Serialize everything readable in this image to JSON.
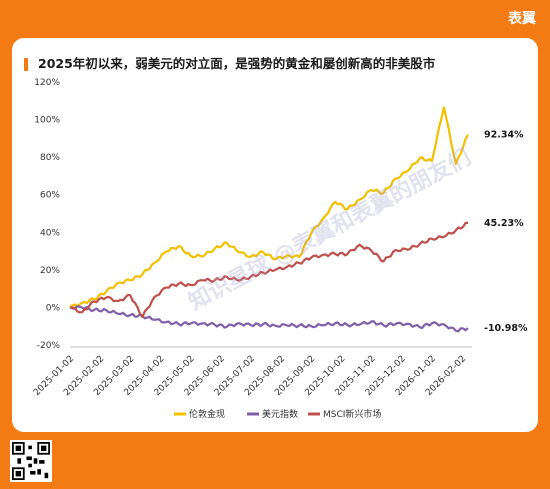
{
  "brand": "表翼",
  "watermark": "知识星球 @表翼和表翼的朋友们",
  "chart_data": {
    "type": "line",
    "title": "2025年初以来，弱美元的对立面，是强势的黄金和屡创新高的非美股市",
    "xlabel": "",
    "ylabel": "",
    "x_ticks": [
      "2025-01-02",
      "2025-02-02",
      "2025-03-02",
      "2025-04-02",
      "2025-05-02",
      "2025-06-02",
      "2025-07-02",
      "2025-08-02",
      "2025-09-02",
      "2025-10-02",
      "2025-11-02",
      "2025-12-02",
      "2026-01-02",
      "2026-02-02"
    ],
    "y_ticks": [
      "-20%",
      "0%",
      "20%",
      "40%",
      "60%",
      "80%",
      "100%",
      "120%"
    ],
    "ylim": [
      -20,
      120
    ],
    "grid": false,
    "legend_position": "bottom",
    "series": [
      {
        "name": "伦敦金现",
        "color": "#f2c000",
        "end_label": "92.34%",
        "values": [
          0,
          2,
          5,
          8,
          13,
          15,
          17,
          24,
          30,
          32,
          28,
          27,
          31,
          35,
          29,
          27,
          30,
          25,
          28,
          27,
          39,
          48,
          56,
          52,
          58,
          62,
          61,
          69,
          72,
          80,
          78,
          106,
          77,
          92
        ]
      },
      {
        "name": "美元指数",
        "color": "#7f5fa8",
        "end_label": "-10.98%",
        "values": [
          0,
          0,
          -1,
          -2,
          -3,
          -4,
          -5,
          -6,
          -8,
          -9,
          -8,
          -9,
          -9,
          -10,
          -9,
          -9,
          -9,
          -10,
          -9,
          -10,
          -10,
          -9,
          -9,
          -9,
          -9,
          -8,
          -9,
          -9,
          -9,
          -10,
          -9,
          -9,
          -12,
          -11
        ]
      },
      {
        "name": "MSCI新兴市场",
        "color": "#c0504d",
        "end_label": "45.23%",
        "values": [
          0,
          -2,
          3,
          5,
          4,
          6,
          -5,
          6,
          10,
          13,
          12,
          14,
          15,
          16,
          14,
          17,
          18,
          20,
          22,
          23,
          27,
          28,
          28,
          29,
          33,
          30,
          25,
          30,
          31,
          34,
          36,
          38,
          41,
          45
        ]
      }
    ]
  }
}
